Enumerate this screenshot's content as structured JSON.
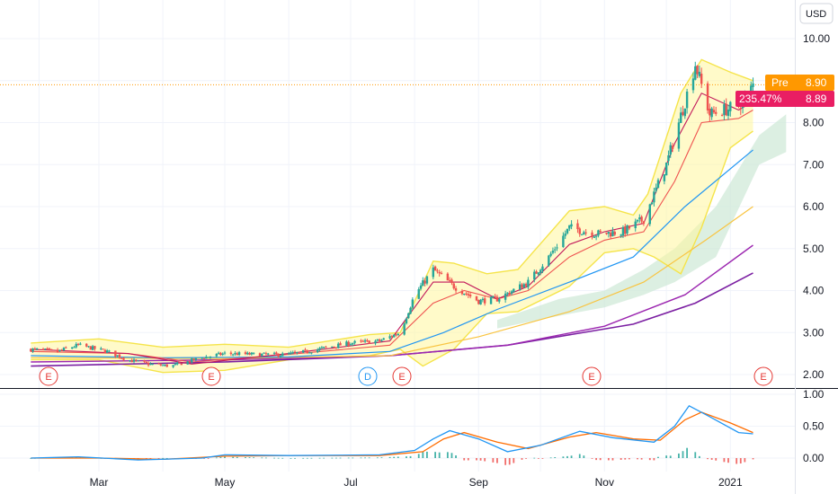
{
  "currency": "USD",
  "colors": {
    "up": "#26a69a",
    "down": "#ef5350",
    "bb_fill": "#fff59d",
    "bb_line": "#f5e44a",
    "ema_fast": "#c2185b",
    "ema_mid": "#ef5350",
    "ma50": "#2196f3",
    "ma100": "#f9c440",
    "ma200": "#9c27b0",
    "ma300": "#7b1fa2",
    "cloud": "#cde8d6",
    "macd": "#2196f3",
    "signal": "#ff6d00",
    "pre_tag": "#ff9800",
    "change_tag": "#e91e63",
    "earnings": "#e53935",
    "dividend": "#2196f3"
  },
  "price_axis": {
    "labels": [
      "10.00",
      "9.00",
      "8.00",
      "7.00",
      "6.00",
      "5.00",
      "4.00",
      "3.00",
      "2.00"
    ]
  },
  "macd_axis": {
    "labels": [
      "1.00",
      "0.50",
      "0.00"
    ]
  },
  "time_axis": {
    "labels": [
      "Mar",
      "May",
      "Jul",
      "Sep",
      "Nov",
      "2021"
    ]
  },
  "tags": {
    "pre_label": "Pre",
    "pre_value": "8.90",
    "change_pct": "235.47%",
    "last_value": "8.89"
  },
  "events": [
    {
      "letter": "E",
      "type": "earnings"
    },
    {
      "letter": "E",
      "type": "earnings"
    },
    {
      "letter": "D",
      "type": "dividend"
    },
    {
      "letter": "E",
      "type": "earnings"
    },
    {
      "letter": "E",
      "type": "earnings"
    },
    {
      "letter": "E",
      "type": "earnings"
    }
  ],
  "chart_data": {
    "type": "candlestick",
    "ylim": [
      1.7,
      10.4
    ],
    "macd_ylim": [
      -0.12,
      1.0
    ],
    "price_path": [
      [
        "2020-01-28",
        2.6
      ],
      [
        "2020-02-10",
        2.55
      ],
      [
        "2020-02-20",
        2.7
      ],
      [
        "2020-03-05",
        2.55
      ],
      [
        "2020-03-15",
        2.35
      ],
      [
        "2020-03-25",
        2.25
      ],
      [
        "2020-04-05",
        2.2
      ],
      [
        "2020-04-20",
        2.4
      ],
      [
        "2020-05-01",
        2.5
      ],
      [
        "2020-05-15",
        2.48
      ],
      [
        "2020-05-30",
        2.47
      ],
      [
        "2020-06-10",
        2.55
      ],
      [
        "2020-06-20",
        2.65
      ],
      [
        "2020-07-01",
        2.75
      ],
      [
        "2020-07-15",
        2.8
      ],
      [
        "2020-07-25",
        3.0
      ],
      [
        "2020-08-01",
        3.9
      ],
      [
        "2020-08-10",
        4.5
      ],
      [
        "2020-08-20",
        4.1
      ],
      [
        "2020-09-01",
        3.75
      ],
      [
        "2020-09-10",
        3.8
      ],
      [
        "2020-09-25",
        4.2
      ],
      [
        "2020-10-05",
        4.8
      ],
      [
        "2020-10-15",
        5.5
      ],
      [
        "2020-10-28",
        5.35
      ],
      [
        "2020-11-10",
        5.4
      ],
      [
        "2020-11-20",
        5.7
      ],
      [
        "2020-12-01",
        7.0
      ],
      [
        "2020-12-10",
        8.5
      ],
      [
        "2020-12-15",
        9.4
      ],
      [
        "2020-12-22",
        8.2
      ],
      [
        "2021-01-05",
        8.4
      ],
      [
        "2021-01-10",
        8.7
      ],
      [
        "2021-01-12",
        8.9
      ]
    ],
    "bollinger_upper": [
      [
        "2020-01-28",
        2.75
      ],
      [
        "2020-03-01",
        2.85
      ],
      [
        "2020-04-01",
        2.65
      ],
      [
        "2020-05-01",
        2.72
      ],
      [
        "2020-06-01",
        2.65
      ],
      [
        "2020-07-10",
        2.95
      ],
      [
        "2020-07-25",
        3.0
      ],
      [
        "2020-08-10",
        4.7
      ],
      [
        "2020-08-20",
        4.65
      ],
      [
        "2020-09-05",
        4.4
      ],
      [
        "2020-09-20",
        4.5
      ],
      [
        "2020-10-15",
        5.9
      ],
      [
        "2020-11-01",
        6.0
      ],
      [
        "2020-11-15",
        5.8
      ],
      [
        "2020-11-22",
        6.3
      ],
      [
        "2020-12-08",
        8.7
      ],
      [
        "2020-12-18",
        9.5
      ],
      [
        "2021-01-01",
        9.2
      ],
      [
        "2021-01-12",
        9.0
      ]
    ],
    "bollinger_lower": [
      [
        "2020-01-28",
        2.35
      ],
      [
        "2020-03-01",
        2.35
      ],
      [
        "2020-04-01",
        2.05
      ],
      [
        "2020-05-01",
        2.1
      ],
      [
        "2020-06-01",
        2.35
      ],
      [
        "2020-07-10",
        2.45
      ],
      [
        "2020-07-25",
        2.6
      ],
      [
        "2020-08-05",
        2.2
      ],
      [
        "2020-08-20",
        2.6
      ],
      [
        "2020-09-05",
        3.45
      ],
      [
        "2020-09-20",
        3.5
      ],
      [
        "2020-10-15",
        4.1
      ],
      [
        "2020-11-01",
        4.9
      ],
      [
        "2020-11-15",
        5.0
      ],
      [
        "2020-11-25",
        4.8
      ],
      [
        "2020-12-08",
        4.4
      ],
      [
        "2020-12-18",
        5.5
      ],
      [
        "2021-01-01",
        7.4
      ],
      [
        "2021-01-12",
        7.8
      ]
    ],
    "ema_fast": [
      [
        "2020-01-28",
        2.6
      ],
      [
        "2020-03-15",
        2.5
      ],
      [
        "2020-04-15",
        2.25
      ],
      [
        "2020-06-01",
        2.5
      ],
      [
        "2020-07-20",
        2.8
      ],
      [
        "2020-08-10",
        4.2
      ],
      [
        "2020-08-25",
        4.2
      ],
      [
        "2020-09-10",
        3.8
      ],
      [
        "2020-09-25",
        4.1
      ],
      [
        "2020-10-15",
        5.1
      ],
      [
        "2020-11-01",
        5.4
      ],
      [
        "2020-11-20",
        5.6
      ],
      [
        "2020-12-05",
        7.5
      ],
      [
        "2020-12-18",
        8.7
      ],
      [
        "2021-01-05",
        8.3
      ],
      [
        "2021-01-12",
        8.5
      ]
    ],
    "ema_mid": [
      [
        "2020-01-28",
        2.55
      ],
      [
        "2020-03-15",
        2.5
      ],
      [
        "2020-04-15",
        2.3
      ],
      [
        "2020-06-01",
        2.48
      ],
      [
        "2020-07-20",
        2.7
      ],
      [
        "2020-08-10",
        3.7
      ],
      [
        "2020-08-25",
        4.0
      ],
      [
        "2020-09-10",
        3.8
      ],
      [
        "2020-09-25",
        4.0
      ],
      [
        "2020-10-15",
        4.8
      ],
      [
        "2020-11-01",
        5.2
      ],
      [
        "2020-11-20",
        5.4
      ],
      [
        "2020-12-05",
        6.6
      ],
      [
        "2020-12-18",
        8.0
      ],
      [
        "2021-01-05",
        8.1
      ],
      [
        "2021-01-12",
        8.3
      ]
    ],
    "ma50": [
      [
        "2020-01-28",
        2.45
      ],
      [
        "2020-04-01",
        2.4
      ],
      [
        "2020-06-01",
        2.42
      ],
      [
        "2020-07-20",
        2.55
      ],
      [
        "2020-08-15",
        3.0
      ],
      [
        "2020-09-10",
        3.55
      ],
      [
        "2020-10-15",
        4.2
      ],
      [
        "2020-11-15",
        4.8
      ],
      [
        "2020-12-10",
        6.0
      ],
      [
        "2021-01-12",
        7.35
      ]
    ],
    "ma100": [
      [
        "2020-01-28",
        2.4
      ],
      [
        "2020-05-01",
        2.38
      ],
      [
        "2020-07-20",
        2.45
      ],
      [
        "2020-09-01",
        2.9
      ],
      [
        "2020-10-15",
        3.5
      ],
      [
        "2020-11-20",
        4.2
      ],
      [
        "2020-12-20",
        5.2
      ],
      [
        "2021-01-12",
        6.0
      ]
    ],
    "ma200": [
      [
        "2020-01-28",
        2.3
      ],
      [
        "2020-05-01",
        2.35
      ],
      [
        "2020-07-20",
        2.45
      ],
      [
        "2020-09-15",
        2.7
      ],
      [
        "2020-11-01",
        3.15
      ],
      [
        "2020-12-10",
        3.9
      ],
      [
        "2021-01-12",
        5.08
      ]
    ],
    "ma300": [
      [
        "2020-01-28",
        2.2
      ],
      [
        "2020-05-01",
        2.3
      ],
      [
        "2020-07-20",
        2.45
      ],
      [
        "2020-09-15",
        2.7
      ],
      [
        "2020-11-15",
        3.2
      ],
      [
        "2020-12-15",
        3.7
      ],
      [
        "2021-01-12",
        4.42
      ]
    ],
    "cloud_top": [
      [
        "2020-09-10",
        3.3
      ],
      [
        "2020-10-10",
        3.8
      ],
      [
        "2020-11-01",
        4.0
      ],
      [
        "2020-11-20",
        4.5
      ],
      [
        "2020-12-05",
        5.0
      ],
      [
        "2020-12-25",
        6.0
      ],
      [
        "2021-01-15",
        7.7
      ],
      [
        "2021-01-28",
        8.2
      ]
    ],
    "cloud_bottom": [
      [
        "2020-09-10",
        3.1
      ],
      [
        "2020-10-10",
        3.4
      ],
      [
        "2020-11-01",
        3.6
      ],
      [
        "2020-11-20",
        3.9
      ],
      [
        "2020-12-05",
        4.2
      ],
      [
        "2020-12-25",
        4.8
      ],
      [
        "2021-01-15",
        7.0
      ],
      [
        "2021-01-28",
        7.3
      ]
    ],
    "macd_line": [
      [
        "2020-01-28",
        0.0
      ],
      [
        "2020-02-20",
        0.02
      ],
      [
        "2020-03-20",
        -0.03
      ],
      [
        "2020-04-20",
        0.0
      ],
      [
        "2020-05-01",
        0.05
      ],
      [
        "2020-06-01",
        0.04
      ],
      [
        "2020-07-15",
        0.05
      ],
      [
        "2020-08-01",
        0.12
      ],
      [
        "2020-08-10",
        0.3
      ],
      [
        "2020-08-18",
        0.43
      ],
      [
        "2020-09-01",
        0.3
      ],
      [
        "2020-09-15",
        0.1
      ],
      [
        "2020-10-01",
        0.2
      ],
      [
        "2020-10-20",
        0.42
      ],
      [
        "2020-11-05",
        0.32
      ],
      [
        "2020-11-25",
        0.25
      ],
      [
        "2020-12-05",
        0.5
      ],
      [
        "2020-12-12",
        0.82
      ],
      [
        "2020-12-22",
        0.65
      ],
      [
        "2021-01-05",
        0.4
      ],
      [
        "2021-01-12",
        0.38
      ]
    ],
    "signal_line": [
      [
        "2020-01-28",
        0.0
      ],
      [
        "2020-03-01",
        0.0
      ],
      [
        "2020-04-01",
        -0.02
      ],
      [
        "2020-05-01",
        0.03
      ],
      [
        "2020-06-01",
        0.04
      ],
      [
        "2020-07-15",
        0.04
      ],
      [
        "2020-08-05",
        0.1
      ],
      [
        "2020-08-15",
        0.3
      ],
      [
        "2020-08-25",
        0.4
      ],
      [
        "2020-09-10",
        0.25
      ],
      [
        "2020-09-25",
        0.15
      ],
      [
        "2020-10-15",
        0.33
      ],
      [
        "2020-10-28",
        0.4
      ],
      [
        "2020-11-15",
        0.3
      ],
      [
        "2020-11-28",
        0.28
      ],
      [
        "2020-12-10",
        0.6
      ],
      [
        "2020-12-18",
        0.72
      ],
      [
        "2021-01-01",
        0.55
      ],
      [
        "2021-01-12",
        0.4
      ]
    ]
  }
}
